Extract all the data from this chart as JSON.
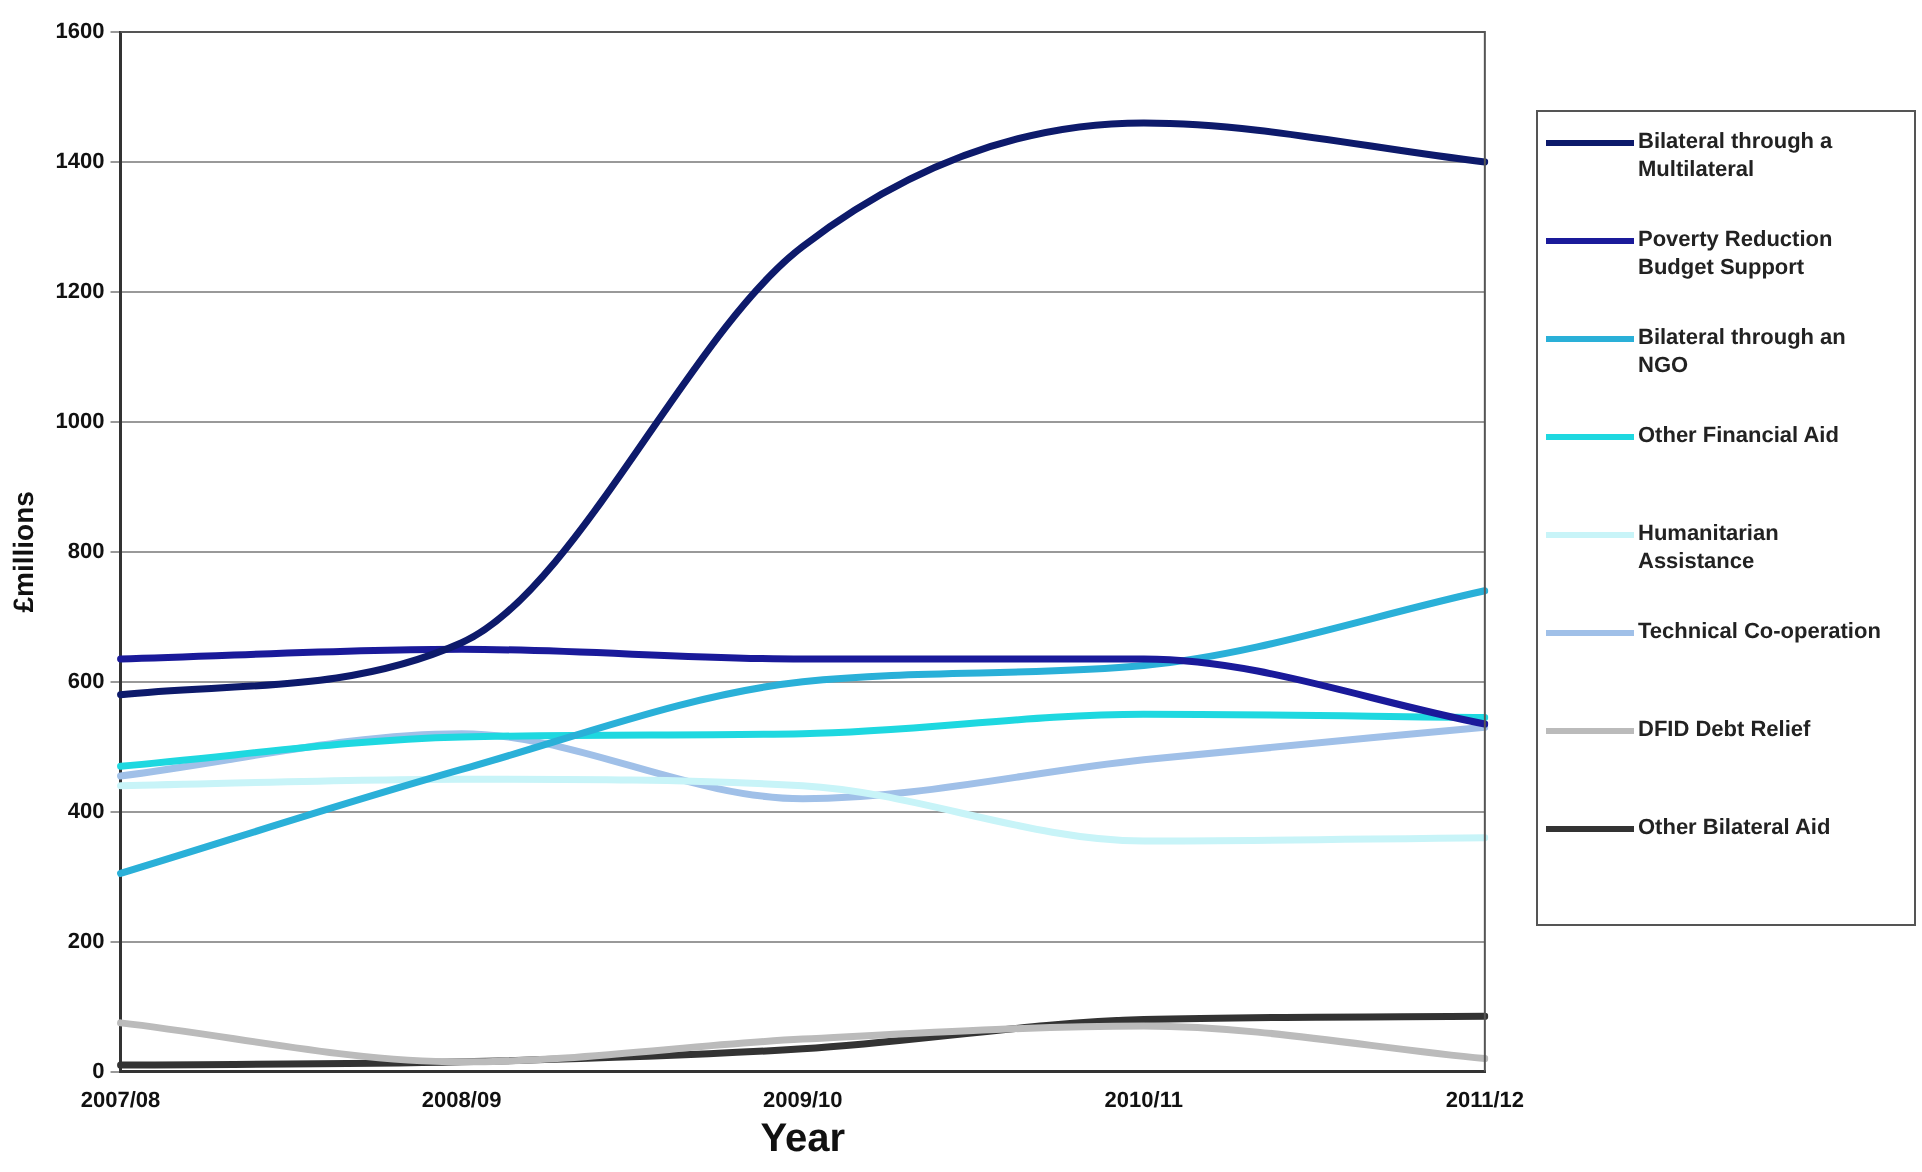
{
  "chart_data": {
    "type": "line",
    "xlabel": "Year",
    "ylabel": "£millions",
    "categories": [
      "2007/08",
      "2008/09",
      "2009/10",
      "2010/11",
      "2011/12"
    ],
    "series": [
      {
        "name": "Bilateral through a Multilateral",
        "color": "#0d1a6b",
        "values": [
          580,
          660,
          1270,
          1460,
          1400
        ]
      },
      {
        "name": "Poverty Reduction Budget Support",
        "color": "#1a1a9a",
        "values": [
          635,
          650,
          635,
          635,
          535
        ]
      },
      {
        "name": "Bilateral through an NGO",
        "color": "#2ab0d8",
        "values": [
          305,
          465,
          600,
          625,
          740
        ]
      },
      {
        "name": "Other Financial Aid",
        "color": "#1ed8e0",
        "values": [
          470,
          515,
          520,
          550,
          545
        ]
      },
      {
        "name": "Humanitarian Assistance",
        "color": "#c8f4f8",
        "values": [
          440,
          450,
          440,
          355,
          360
        ]
      },
      {
        "name": "Technical Co-operation",
        "color": "#a0c0e8",
        "values": [
          455,
          520,
          420,
          480,
          530
        ]
      },
      {
        "name": "DFID Debt Relief",
        "color": "#bbbbbb",
        "values": [
          75,
          15,
          50,
          70,
          20
        ]
      },
      {
        "name": "Other Bilateral Aid",
        "color": "#333333",
        "values": [
          10,
          15,
          35,
          80,
          85
        ]
      }
    ],
    "ylim": [
      0,
      1600
    ],
    "yticks": [
      0,
      200,
      400,
      600,
      800,
      1000,
      1200,
      1400,
      1600
    ],
    "grid": "y",
    "legend": "right",
    "marker": "none",
    "line_style": "solid"
  }
}
